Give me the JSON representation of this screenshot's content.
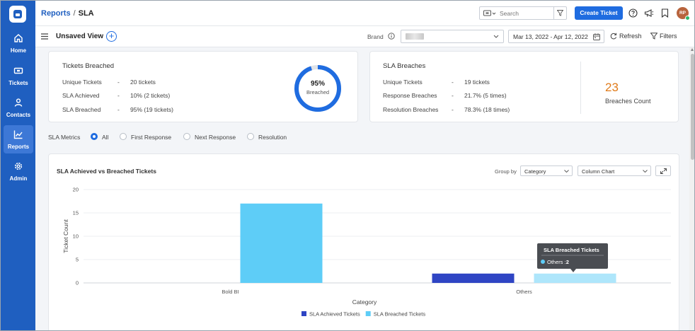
{
  "app": {
    "logo": "app-logo"
  },
  "sidebar": {
    "items": [
      {
        "label": "Home",
        "icon": "home-icon"
      },
      {
        "label": "Tickets",
        "icon": "ticket-icon"
      },
      {
        "label": "Contacts",
        "icon": "person-icon"
      },
      {
        "label": "Reports",
        "icon": "chart-icon",
        "active": true
      },
      {
        "label": "Admin",
        "icon": "gear-icon"
      }
    ]
  },
  "header": {
    "breadcrumb_link": "Reports",
    "breadcrumb_sep": "/",
    "breadcrumb_current": "SLA",
    "search_placeholder": "Search",
    "create_ticket_label": "Create Ticket",
    "avatar_initials": "RP"
  },
  "toolbar": {
    "view_title": "Unsaved View",
    "add_view_label": "+",
    "brand_label": "Brand",
    "date_range": "Mar 13, 2022 - Apr 12, 2022",
    "refresh_label": "Refresh",
    "filters_label": "Filters"
  },
  "tickets_breached": {
    "title": "Tickets Breached",
    "rows": [
      {
        "label": "Unique Tickets",
        "dash": "-",
        "value": "20 tickets"
      },
      {
        "label": "SLA Achieved",
        "dash": "-",
        "value": "10% (2 tickets)"
      },
      {
        "label": "SLA Breached",
        "dash": "-",
        "value": "95% (19 tickets)"
      }
    ],
    "ring_percent_text": "95%",
    "ring_fraction": 0.95,
    "ring_caption": "Breached"
  },
  "sla_breaches": {
    "title": "SLA Breaches",
    "rows": [
      {
        "label": "Unique Tickets",
        "dash": "-",
        "value": "19 tickets"
      },
      {
        "label": "Response Breaches",
        "dash": "-",
        "value": "21.7% (5 times)"
      },
      {
        "label": "Resolution Breaches",
        "dash": "-",
        "value": "78.3% (18 times)"
      }
    ],
    "count": "23",
    "count_label": "Breaches Count"
  },
  "metrics": {
    "label": "SLA Metrics",
    "options": [
      {
        "label": "All",
        "selected": true
      },
      {
        "label": "First Response",
        "selected": false
      },
      {
        "label": "Next Response",
        "selected": false
      },
      {
        "label": "Resolution",
        "selected": false
      }
    ]
  },
  "chart_panel": {
    "title": "SLA Achieved vs Breached Tickets",
    "group_by_label": "Group by",
    "group_by_value": "Category",
    "chart_type_value": "Column Chart"
  },
  "colors": {
    "primary": "#1f6ce0",
    "sidebar": "#1f5fc0",
    "achieved": "#2f45c4",
    "breached": "#5ecdf7",
    "count": "#e07b1a"
  },
  "chart_data": {
    "type": "bar",
    "xlabel": "Category",
    "ylabel": "Ticket Count",
    "ylim": [
      0,
      20
    ],
    "yticks": [
      0,
      5,
      10,
      15,
      20
    ],
    "categories": [
      "Bold BI",
      "Others"
    ],
    "series": [
      {
        "name": "SLA Achieved Tickets",
        "values": [
          0,
          2
        ],
        "color": "#2f45c4"
      },
      {
        "name": "SLA Breached Tickets",
        "values": [
          17,
          2
        ],
        "color": "#5ecdf7"
      }
    ],
    "grid": true,
    "legend": "bottom",
    "tooltip": {
      "title": "SLA Breached Tickets",
      "category": "Others",
      "value": "2"
    }
  }
}
